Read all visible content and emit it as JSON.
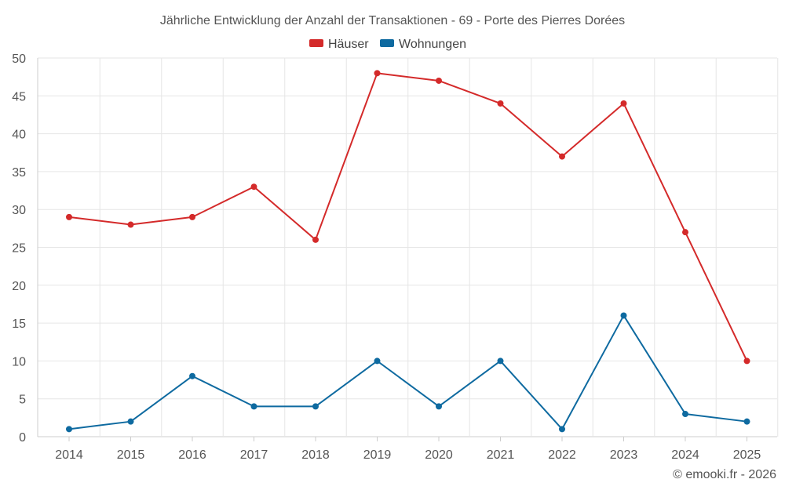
{
  "chart_data": {
    "type": "line",
    "title": "Jährliche Entwicklung der Anzahl der Transaktionen - 69 - Porte des Pierres Dorées",
    "categories": [
      "2014",
      "2015",
      "2016",
      "2017",
      "2018",
      "2019",
      "2020",
      "2021",
      "2022",
      "2023",
      "2024",
      "2025"
    ],
    "series": [
      {
        "name": "Häuser",
        "color": "#d42a2a",
        "values": [
          29,
          28,
          29,
          33,
          26,
          48,
          47,
          44,
          37,
          44,
          27,
          10
        ]
      },
      {
        "name": "Wohnungen",
        "color": "#0e6aa0",
        "values": [
          1,
          2,
          8,
          4,
          4,
          10,
          4,
          10,
          1,
          16,
          3,
          2
        ]
      }
    ],
    "ylim": [
      0,
      50
    ],
    "yticks": [
      0,
      5,
      10,
      15,
      20,
      25,
      30,
      35,
      40,
      45,
      50
    ],
    "grid": true,
    "legend": "top-center"
  },
  "credit": "© emooki.fr - 2026"
}
